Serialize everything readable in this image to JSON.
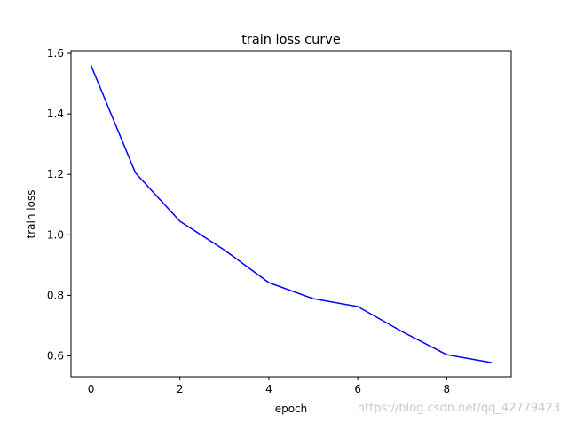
{
  "chart_data": {
    "type": "line",
    "title": "train loss curve",
    "xlabel": "epoch",
    "ylabel": "train loss",
    "xlim": [
      -0.45,
      9.45
    ],
    "ylim": [
      0.531,
      1.609
    ],
    "xticks": [
      0,
      2,
      4,
      6,
      8
    ],
    "xtick_labels": [
      "0",
      "2",
      "4",
      "6",
      "8"
    ],
    "yticks": [
      0.6,
      0.8,
      1.0,
      1.2,
      1.4,
      1.6
    ],
    "ytick_labels": [
      "0.6",
      "0.8",
      "1.0",
      "1.2",
      "1.4",
      "1.6"
    ],
    "grid": false,
    "series": [
      {
        "color": "#0000ff",
        "x": [
          0,
          1,
          2,
          3,
          4,
          5,
          6,
          7,
          8,
          9
        ],
        "values": [
          1.56,
          1.205,
          1.045,
          0.95,
          0.842,
          0.789,
          0.763,
          0.68,
          0.604,
          0.578
        ]
      }
    ]
  },
  "watermark": {
    "text": "https://blog.csdn.net/qq_42779423"
  }
}
